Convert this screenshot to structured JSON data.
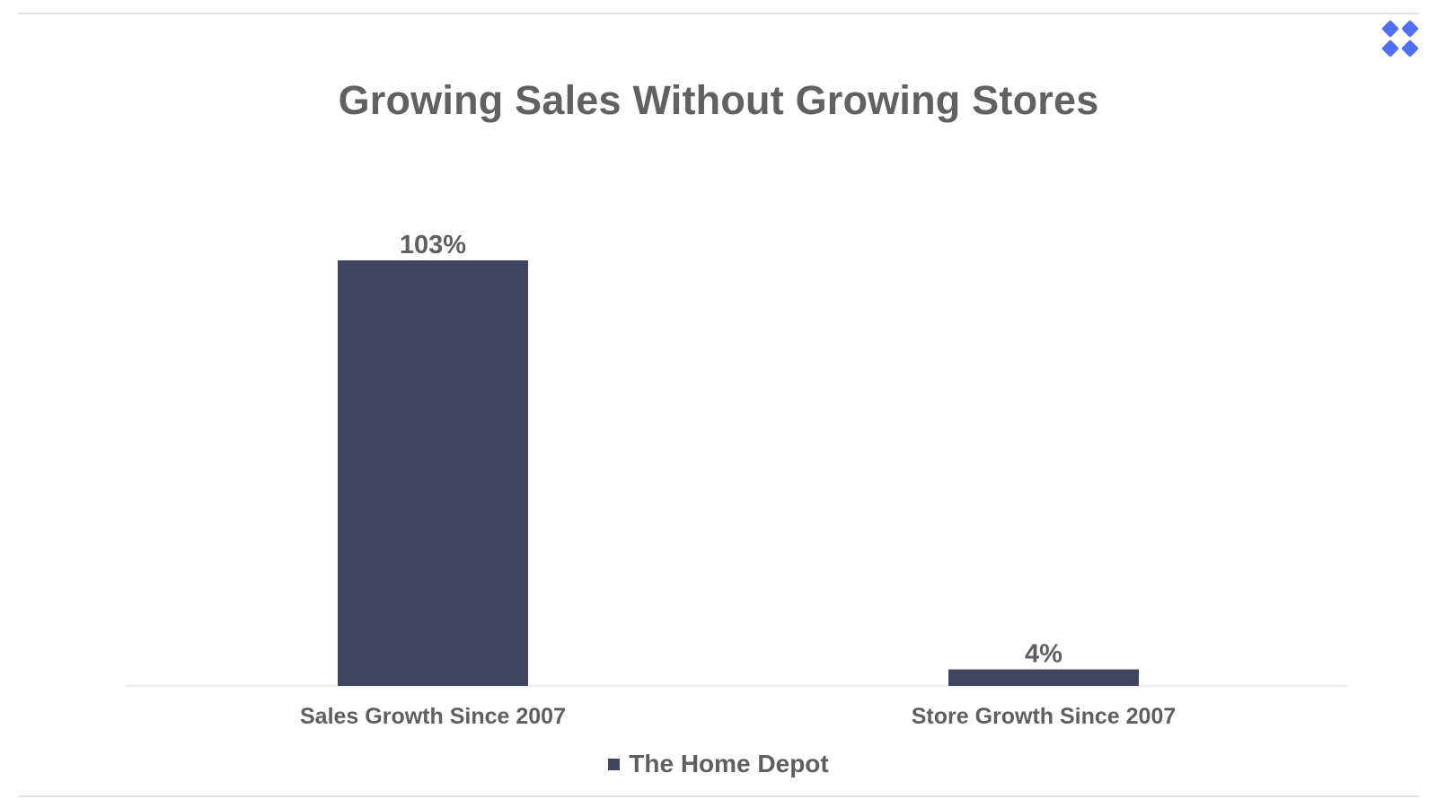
{
  "colors": {
    "bar": "#3f4560",
    "text": "#5f5f5f",
    "baseline": "#e6e6e6",
    "logo": "#4f6ef7"
  },
  "logo": {
    "icon": "x-mark-icon"
  },
  "chart_data": {
    "type": "bar",
    "title": "Growing Sales Without Growing Stores",
    "categories": [
      "Sales Growth Since 2007",
      "Store Growth Since 2007"
    ],
    "series": [
      {
        "name": "The Home Depot",
        "values": [
          103,
          4
        ]
      }
    ],
    "data_labels": [
      "103%",
      "4%"
    ],
    "ylim": [
      0,
      103
    ],
    "grid": false,
    "legend_position": "bottom"
  }
}
